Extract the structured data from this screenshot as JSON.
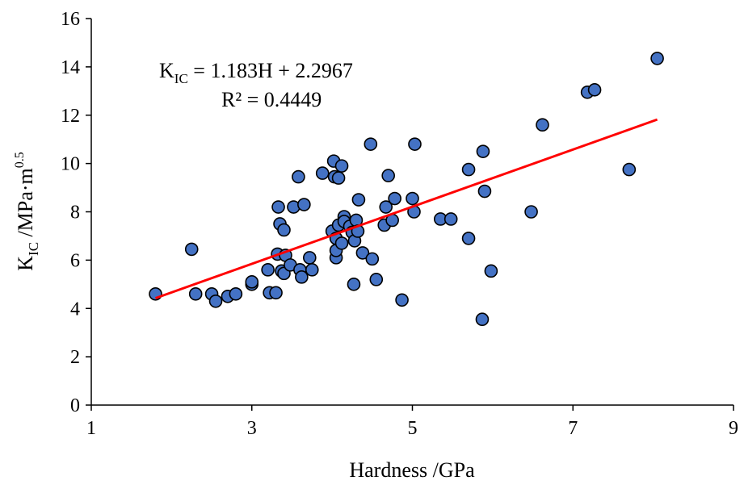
{
  "chart_data": {
    "type": "scatter",
    "xlabel": "Hardness /GPa",
    "ylabel": {
      "base": "K",
      "sub": "IC",
      "rest": " /MPa·m",
      "sup": "0.5"
    },
    "xlim": [
      1,
      9
    ],
    "ylim": [
      0,
      16
    ],
    "xticks": [
      1,
      3,
      5,
      7,
      9
    ],
    "yticks": [
      0,
      2,
      4,
      6,
      8,
      10,
      12,
      14,
      16
    ],
    "grid": false,
    "legend": "none",
    "marker_color": "#4472C4",
    "marker_edge_color": "#000000",
    "trendline_color": "#FF0000",
    "trendline": {
      "slope": 1.183,
      "intercept": 2.2967,
      "x_range": [
        1.8,
        8.05
      ]
    },
    "annotation": {
      "equation": {
        "lhs_base": "K",
        "lhs_sub": "IC",
        "rhs": " = 1.183H + 2.2967"
      },
      "r2": "R² = 0.4449"
    },
    "points": [
      [
        1.8,
        4.6
      ],
      [
        2.25,
        6.45
      ],
      [
        2.3,
        4.6
      ],
      [
        2.5,
        4.6
      ],
      [
        2.55,
        4.3
      ],
      [
        2.7,
        4.5
      ],
      [
        2.8,
        4.6
      ],
      [
        3.0,
        5.0
      ],
      [
        3.0,
        5.1
      ],
      [
        3.2,
        5.6
      ],
      [
        3.22,
        4.65
      ],
      [
        3.3,
        4.65
      ],
      [
        3.32,
        6.25
      ],
      [
        3.33,
        8.2
      ],
      [
        3.35,
        7.5
      ],
      [
        3.37,
        5.55
      ],
      [
        3.4,
        7.25
      ],
      [
        3.4,
        5.45
      ],
      [
        3.42,
        6.2
      ],
      [
        3.48,
        5.8
      ],
      [
        3.52,
        8.2
      ],
      [
        3.58,
        9.45
      ],
      [
        3.6,
        5.6
      ],
      [
        3.62,
        5.3
      ],
      [
        3.65,
        8.3
      ],
      [
        3.72,
        6.1
      ],
      [
        3.75,
        5.6
      ],
      [
        3.88,
        9.6
      ],
      [
        4.0,
        7.2
      ],
      [
        4.02,
        10.1
      ],
      [
        4.03,
        9.45
      ],
      [
        4.05,
        6.1
      ],
      [
        4.05,
        6.4
      ],
      [
        4.05,
        6.9
      ],
      [
        4.08,
        7.45
      ],
      [
        4.08,
        9.4
      ],
      [
        4.12,
        9.9
      ],
      [
        4.12,
        6.7
      ],
      [
        4.15,
        7.8
      ],
      [
        4.15,
        7.6
      ],
      [
        4.22,
        7.4
      ],
      [
        4.25,
        7.15
      ],
      [
        4.27,
        5.0
      ],
      [
        4.28,
        6.8
      ],
      [
        4.3,
        7.65
      ],
      [
        4.32,
        7.2
      ],
      [
        4.33,
        8.5
      ],
      [
        4.38,
        6.3
      ],
      [
        4.48,
        10.8
      ],
      [
        4.5,
        6.05
      ],
      [
        4.55,
        5.2
      ],
      [
        4.65,
        7.45
      ],
      [
        4.67,
        8.2
      ],
      [
        4.7,
        9.5
      ],
      [
        4.75,
        7.65
      ],
      [
        4.78,
        8.55
      ],
      [
        4.87,
        4.35
      ],
      [
        5.0,
        8.55
      ],
      [
        5.02,
        8.0
      ],
      [
        5.03,
        10.8
      ],
      [
        5.35,
        7.7
      ],
      [
        5.48,
        7.7
      ],
      [
        5.7,
        9.75
      ],
      [
        5.7,
        6.9
      ],
      [
        5.87,
        3.55
      ],
      [
        5.88,
        10.5
      ],
      [
        5.9,
        8.85
      ],
      [
        5.98,
        5.55
      ],
      [
        6.48,
        8.0
      ],
      [
        6.62,
        11.6
      ],
      [
        7.18,
        12.95
      ],
      [
        7.27,
        13.05
      ],
      [
        7.7,
        9.75
      ],
      [
        8.05,
        14.35
      ]
    ]
  }
}
